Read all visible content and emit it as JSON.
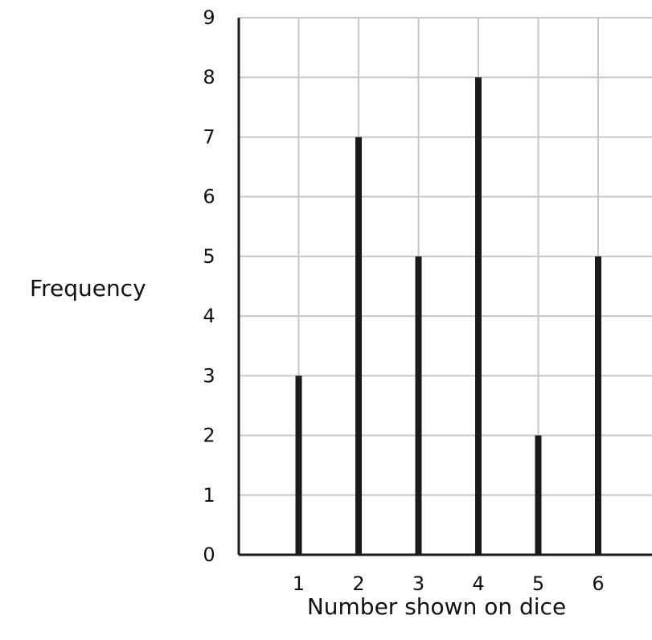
{
  "chart_data": {
    "type": "bar",
    "categories": [
      "1",
      "2",
      "3",
      "4",
      "5",
      "6"
    ],
    "values": [
      3,
      7,
      5,
      8,
      2,
      5
    ],
    "xlabel": "Number shown on dice",
    "ylabel": "Frequency",
    "ylim": [
      0,
      9
    ],
    "yticks": [
      "0",
      "1",
      "2",
      "3",
      "4",
      "5",
      "6",
      "7",
      "8",
      "9"
    ],
    "grid": true,
    "colors": {
      "bar": "#1a1a1a",
      "grid": "#c8c8c8",
      "axis": "#1a1a1a"
    }
  }
}
